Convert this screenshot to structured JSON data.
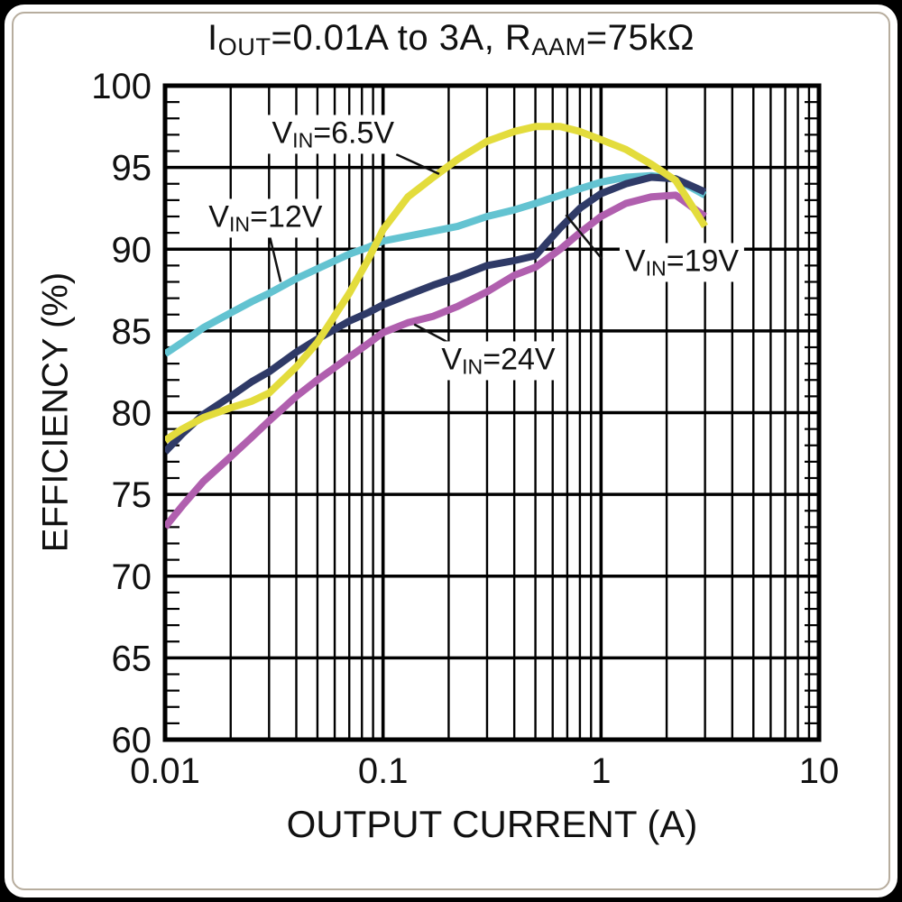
{
  "title": {
    "p1": "I",
    "s1": "OUT",
    "p2": "=0.01A to 3A, R",
    "s2": "AAM",
    "p3": "=75kΩ"
  },
  "chart_data": {
    "type": "line",
    "title": "IOUT=0.01A to 3A, RAAM=75kOhm",
    "xlabel": "OUTPUT CURRENT (A)",
    "ylabel": "EFFICIENCY (%)",
    "xscale": "log",
    "xlim": [
      0.01,
      10
    ],
    "ylim": [
      60,
      100
    ],
    "grid": "black major and minor, log minors vertical, 5% majors horizontal, 1% minor ticks on left/right axes",
    "legend_position": "inline-annotations",
    "x_ticks": [
      {
        "v": 0.01,
        "t": "0.01"
      },
      {
        "v": 0.1,
        "t": "0.1"
      },
      {
        "v": 1,
        "t": "1"
      },
      {
        "v": 10,
        "t": "10"
      }
    ],
    "y_ticks": [
      {
        "v": 100,
        "t": "100"
      },
      {
        "v": 95,
        "t": "95"
      },
      {
        "v": 90,
        "t": "90"
      },
      {
        "v": 85,
        "t": "85"
      },
      {
        "v": 80,
        "t": "80"
      },
      {
        "v": 75,
        "t": "75"
      },
      {
        "v": 70,
        "t": "70"
      },
      {
        "v": 65,
        "t": "65"
      },
      {
        "v": 60,
        "t": "60"
      }
    ],
    "series": [
      {
        "name": "VIN=12V",
        "color": "#63c3d1",
        "points": [
          [
            0.01,
            83.6
          ],
          [
            0.012,
            84.3
          ],
          [
            0.015,
            85.2
          ],
          [
            0.02,
            86.1
          ],
          [
            0.025,
            86.8
          ],
          [
            0.03,
            87.3
          ],
          [
            0.04,
            88.2
          ],
          [
            0.05,
            88.8
          ],
          [
            0.07,
            89.7
          ],
          [
            0.085,
            90.1
          ],
          [
            0.1,
            90.5
          ],
          [
            0.13,
            90.8
          ],
          [
            0.17,
            91.1
          ],
          [
            0.22,
            91.4
          ],
          [
            0.3,
            92.0
          ],
          [
            0.4,
            92.4
          ],
          [
            0.5,
            92.8
          ],
          [
            0.65,
            93.3
          ],
          [
            0.8,
            93.7
          ],
          [
            1,
            94.1
          ],
          [
            1.3,
            94.4
          ],
          [
            1.7,
            94.5
          ],
          [
            2.2,
            94.3
          ],
          [
            3,
            93.3
          ]
        ]
      },
      {
        "name": "VIN=19V",
        "color": "#2f3a67",
        "points": [
          [
            0.01,
            77.6
          ],
          [
            0.012,
            78.7
          ],
          [
            0.015,
            79.9
          ],
          [
            0.02,
            81.0
          ],
          [
            0.025,
            81.9
          ],
          [
            0.03,
            82.5
          ],
          [
            0.04,
            83.7
          ],
          [
            0.05,
            84.5
          ],
          [
            0.07,
            85.6
          ],
          [
            0.085,
            86.1
          ],
          [
            0.1,
            86.6
          ],
          [
            0.13,
            87.2
          ],
          [
            0.17,
            87.8
          ],
          [
            0.22,
            88.3
          ],
          [
            0.3,
            89.0
          ],
          [
            0.4,
            89.3
          ],
          [
            0.5,
            89.6
          ],
          [
            0.65,
            91.3
          ],
          [
            0.8,
            92.5
          ],
          [
            1,
            93.4
          ],
          [
            1.3,
            94.0
          ],
          [
            1.7,
            94.4
          ],
          [
            2.2,
            94.3
          ],
          [
            3,
            93.5
          ]
        ]
      },
      {
        "name": "VIN=24V",
        "color": "#b05fae",
        "points": [
          [
            0.01,
            73.0
          ],
          [
            0.012,
            74.3
          ],
          [
            0.015,
            75.8
          ],
          [
            0.02,
            77.3
          ],
          [
            0.025,
            78.5
          ],
          [
            0.03,
            79.5
          ],
          [
            0.04,
            81.0
          ],
          [
            0.05,
            82.0
          ],
          [
            0.07,
            83.4
          ],
          [
            0.085,
            84.2
          ],
          [
            0.1,
            84.9
          ],
          [
            0.13,
            85.5
          ],
          [
            0.17,
            85.9
          ],
          [
            0.22,
            86.5
          ],
          [
            0.3,
            87.4
          ],
          [
            0.4,
            88.4
          ],
          [
            0.5,
            88.9
          ],
          [
            0.65,
            90.0
          ],
          [
            0.8,
            91.0
          ],
          [
            1,
            92.0
          ],
          [
            1.3,
            92.8
          ],
          [
            1.7,
            93.2
          ],
          [
            2.2,
            93.3
          ],
          [
            3,
            92.0
          ]
        ]
      },
      {
        "name": "VIN=6.5V",
        "color": "#e3dc3c",
        "points": [
          [
            0.01,
            78.3
          ],
          [
            0.012,
            79.0
          ],
          [
            0.015,
            79.7
          ],
          [
            0.02,
            80.3
          ],
          [
            0.025,
            80.7
          ],
          [
            0.03,
            81.2
          ],
          [
            0.04,
            82.8
          ],
          [
            0.05,
            84.3
          ],
          [
            0.07,
            87.3
          ],
          [
            0.085,
            89.3
          ],
          [
            0.1,
            91.2
          ],
          [
            0.13,
            93.2
          ],
          [
            0.17,
            94.4
          ],
          [
            0.22,
            95.5
          ],
          [
            0.3,
            96.6
          ],
          [
            0.4,
            97.2
          ],
          [
            0.5,
            97.5
          ],
          [
            0.65,
            97.5
          ],
          [
            0.8,
            97.2
          ],
          [
            1,
            96.7
          ],
          [
            1.3,
            96.1
          ],
          [
            1.7,
            95.2
          ],
          [
            2.2,
            94.2
          ],
          [
            3,
            91.4
          ]
        ]
      }
    ],
    "annotations": [
      {
        "pre": "V",
        "sub": "IN",
        "post": "=6.5V",
        "label_x": 0.059,
        "label_y": 97.0,
        "line": {
          "x1": 0.115,
          "y1": 95.8,
          "x2": 0.181,
          "y2": 94.6
        }
      },
      {
        "pre": "V",
        "sub": "IN",
        "post": "=12V",
        "label_x": 0.0289,
        "label_y": 91.9,
        "line": {
          "x1": 0.0302,
          "y1": 90.8,
          "x2": 0.0339,
          "y2": 88.0
        }
      },
      {
        "pre": "V",
        "sub": "IN",
        "post": "=19V",
        "label_x": 2.35,
        "label_y": 89.2,
        "line": {
          "x1": 1.01,
          "y1": 89.4,
          "x2": 0.69,
          "y2": 92.1
        }
      },
      {
        "pre": "V",
        "sub": "IN",
        "post": "=24V",
        "label_x": 0.338,
        "label_y": 83.2,
        "line": {
          "x1": 0.212,
          "y1": 84.1,
          "x2": 0.139,
          "y2": 85.4
        }
      }
    ]
  }
}
